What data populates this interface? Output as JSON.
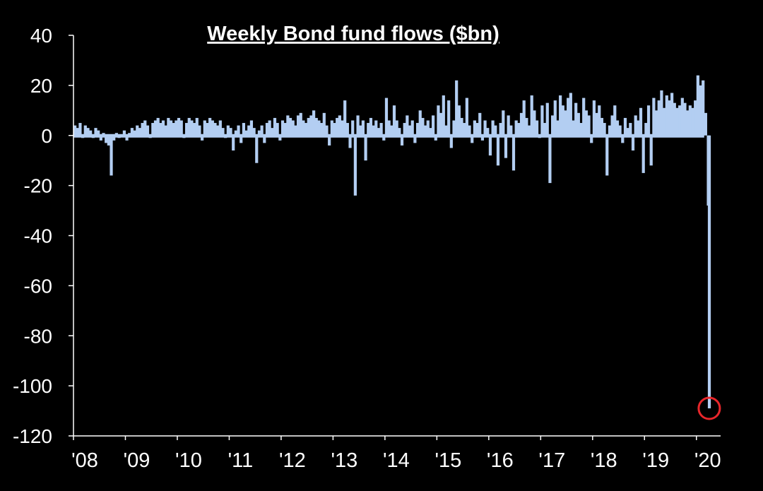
{
  "chart_data": {
    "type": "bar",
    "title": "Weekly Bond fund flows ($bn)",
    "xlabel": "",
    "ylabel": "",
    "ylim": [
      -120,
      40
    ],
    "yticks": [
      40,
      20,
      0,
      -20,
      -40,
      -60,
      -80,
      -100,
      -120
    ],
    "ytick_labels": [
      "40",
      "20",
      "0",
      "-20",
      "-40",
      "-60",
      "-80",
      "-100",
      "-120"
    ],
    "xticks": [
      2008,
      2009,
      2010,
      2011,
      2012,
      2013,
      2014,
      2015,
      2016,
      2017,
      2018,
      2019,
      2020
    ],
    "xtick_labels": [
      "'08",
      "'09",
      "'10",
      "'11",
      "'12",
      "'13",
      "'14",
      "'15",
      "'16",
      "'17",
      "'18",
      "'19",
      "'20"
    ],
    "xlim": [
      2008.0,
      2020.33
    ],
    "grid": false,
    "legend": "none",
    "bar_color": "#b3cef2",
    "highlight_color": "#e8262b",
    "highlight": {
      "x": 2020.22,
      "y": -109
    },
    "series": [
      {
        "x": [
          2008.0,
          2008.05,
          2008.1,
          2008.15,
          2008.2,
          2008.25,
          2008.3,
          2008.35,
          2008.4,
          2008.45,
          2008.5,
          2008.55,
          2008.6,
          2008.65,
          2008.7,
          2008.75,
          2008.8,
          2008.85,
          2008.9,
          2008.95,
          2009.0,
          2009.05,
          2009.1,
          2009.15,
          2009.2,
          2009.25,
          2009.3,
          2009.35,
          2009.4,
          2009.45,
          2009.5,
          2009.55,
          2009.6,
          2009.65,
          2009.7,
          2009.75,
          2009.8,
          2009.85,
          2009.9,
          2009.95,
          2010.0,
          2010.05,
          2010.1,
          2010.15,
          2010.2,
          2010.25,
          2010.3,
          2010.35,
          2010.4,
          2010.45,
          2010.5,
          2010.55,
          2010.6,
          2010.65,
          2010.7,
          2010.75,
          2010.8,
          2010.85,
          2010.9,
          2010.95,
          2011.0,
          2011.05,
          2011.1,
          2011.15,
          2011.2,
          2011.25,
          2011.3,
          2011.35,
          2011.4,
          2011.45,
          2011.5,
          2011.55,
          2011.6,
          2011.65,
          2011.7,
          2011.75,
          2011.8,
          2011.85,
          2011.9,
          2011.95,
          2012.0,
          2012.05,
          2012.1,
          2012.15,
          2012.2,
          2012.25,
          2012.3,
          2012.35,
          2012.4,
          2012.45,
          2012.5,
          2012.55,
          2012.6,
          2012.65,
          2012.7,
          2012.75,
          2012.8,
          2012.85,
          2012.9,
          2012.95,
          2013.0,
          2013.05,
          2013.1,
          2013.15,
          2013.2,
          2013.25,
          2013.3,
          2013.35,
          2013.4,
          2013.45,
          2013.5,
          2013.55,
          2013.6,
          2013.65,
          2013.7,
          2013.75,
          2013.8,
          2013.85,
          2013.9,
          2013.95,
          2014.0,
          2014.05,
          2014.1,
          2014.15,
          2014.2,
          2014.25,
          2014.3,
          2014.35,
          2014.4,
          2014.45,
          2014.5,
          2014.55,
          2014.6,
          2014.65,
          2014.7,
          2014.75,
          2014.8,
          2014.85,
          2014.9,
          2014.95,
          2015.0,
          2015.05,
          2015.1,
          2015.15,
          2015.2,
          2015.25,
          2015.3,
          2015.35,
          2015.4,
          2015.45,
          2015.5,
          2015.55,
          2015.6,
          2015.65,
          2015.7,
          2015.75,
          2015.8,
          2015.85,
          2015.9,
          2015.95,
          2016.0,
          2016.05,
          2016.1,
          2016.15,
          2016.2,
          2016.25,
          2016.3,
          2016.35,
          2016.4,
          2016.45,
          2016.5,
          2016.55,
          2016.6,
          2016.65,
          2016.7,
          2016.75,
          2016.8,
          2016.85,
          2016.9,
          2016.95,
          2017.0,
          2017.05,
          2017.1,
          2017.15,
          2017.2,
          2017.25,
          2017.3,
          2017.35,
          2017.4,
          2017.45,
          2017.5,
          2017.55,
          2017.6,
          2017.65,
          2017.7,
          2017.75,
          2017.8,
          2017.85,
          2017.9,
          2017.95,
          2018.0,
          2018.05,
          2018.1,
          2018.15,
          2018.2,
          2018.25,
          2018.3,
          2018.35,
          2018.4,
          2018.45,
          2018.5,
          2018.55,
          2018.6,
          2018.65,
          2018.7,
          2018.75,
          2018.8,
          2018.85,
          2018.9,
          2018.95,
          2019.0,
          2019.05,
          2019.1,
          2019.15,
          2019.2,
          2019.25,
          2019.3,
          2019.35,
          2019.4,
          2019.45,
          2019.5,
          2019.55,
          2019.6,
          2019.65,
          2019.7,
          2019.75,
          2019.8,
          2019.85,
          2019.9,
          2019.95,
          2020.0,
          2020.05,
          2020.1,
          2020.15,
          2020.2,
          2020.22
        ],
        "values": [
          4,
          3,
          5,
          -1,
          4,
          3,
          2,
          -1,
          3,
          2,
          -2,
          1,
          -3,
          -4,
          -16,
          -2,
          1,
          -1,
          0,
          2,
          -2,
          1,
          3,
          2,
          4,
          3,
          5,
          6,
          4,
          -1,
          5,
          6,
          7,
          5,
          6,
          4,
          7,
          6,
          5,
          6,
          7,
          6,
          -1,
          5,
          7,
          6,
          5,
          7,
          4,
          -2,
          6,
          5,
          7,
          6,
          5,
          4,
          6,
          3,
          -1,
          4,
          3,
          -6,
          2,
          4,
          -3,
          5,
          2,
          4,
          6,
          3,
          -11,
          2,
          4,
          -3,
          5,
          6,
          3,
          7,
          5,
          -2,
          6,
          5,
          8,
          7,
          6,
          4,
          8,
          9,
          6,
          5,
          7,
          8,
          10,
          7,
          6,
          5,
          9,
          4,
          -4,
          6,
          5,
          7,
          8,
          6,
          14,
          5,
          -5,
          6,
          -24,
          8,
          4,
          6,
          -10,
          5,
          7,
          4,
          6,
          3,
          5,
          -2,
          15,
          6,
          4,
          12,
          6,
          3,
          -4,
          5,
          8,
          4,
          6,
          -3,
          5,
          10,
          7,
          4,
          6,
          3,
          8,
          -2,
          12,
          9,
          16,
          4,
          14,
          -5,
          6,
          22,
          12,
          7,
          5,
          15,
          4,
          -3,
          6,
          5,
          9,
          -2,
          6,
          3,
          -8,
          6,
          4,
          -12,
          5,
          10,
          -9,
          8,
          4,
          -14,
          6,
          5,
          9,
          14,
          7,
          4,
          16,
          10,
          6,
          -1,
          12,
          5,
          13,
          -19,
          8,
          14,
          6,
          16,
          12,
          10,
          15,
          17,
          6,
          13,
          9,
          5,
          15,
          10,
          8,
          -3,
          14,
          9,
          12,
          7,
          5,
          -16,
          4,
          8,
          12,
          6,
          4,
          -3,
          7,
          3,
          5,
          -6,
          8,
          6,
          11,
          -15,
          5,
          12,
          -12,
          15,
          10,
          14,
          18,
          11,
          16,
          14,
          17,
          13,
          11,
          12,
          15,
          13,
          10,
          12,
          11,
          14,
          24,
          20,
          22,
          9,
          -28,
          -109
        ]
      }
    ]
  }
}
